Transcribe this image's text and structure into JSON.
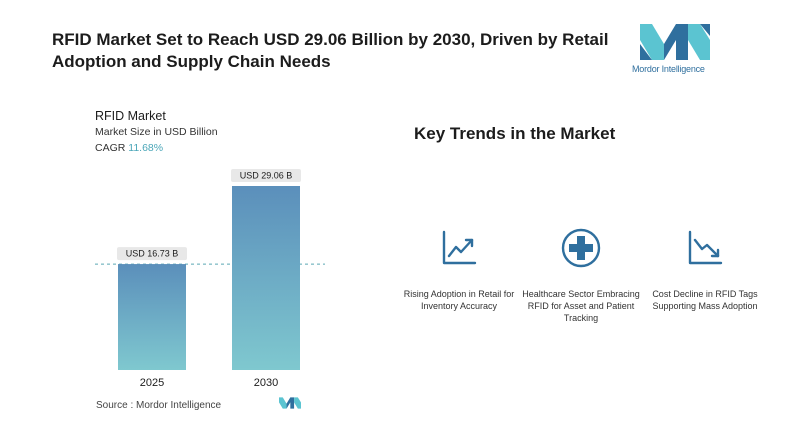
{
  "header": {
    "title": "RFID Market Set to Reach USD 29.06 Billion by 2030, Driven by Retail Adoption and Supply Chain Needs"
  },
  "brand": {
    "name": "Mordor Intelligence",
    "accent": "#2f6f9e",
    "accent_light": "#5bc4d1"
  },
  "chart_data": {
    "type": "bar",
    "title": "RFID Market",
    "subtitle": "Market Size in USD Billion",
    "cagr_label": "CAGR",
    "cagr_value": "11.68%",
    "categories": [
      "2025",
      "2030"
    ],
    "values": [
      16.73,
      29.06
    ],
    "value_labels": [
      "USD 16.73 B",
      "USD 29.06 B"
    ],
    "ylim": [
      0,
      30
    ],
    "grid": false,
    "reference_line": "dashed line at first bar value",
    "colors": {
      "bar_top": "#5b8fbb",
      "bar_bottom": "#7fc8cf",
      "label_bg": "#e8e8e8"
    }
  },
  "source": {
    "text": "Source :  Mordor Intelligence"
  },
  "trends": {
    "title": "Key Trends in the Market",
    "items": [
      {
        "icon": "growth-chart-icon",
        "label": "Rising Adoption in Retail for Inventory Accuracy"
      },
      {
        "icon": "medical-cross-icon",
        "label": "Healthcare Sector Embracing RFID for Asset and Patient Tracking"
      },
      {
        "icon": "decline-chart-icon",
        "label": "Cost Decline in RFID Tags Supporting Mass Adoption"
      }
    ],
    "icon_color": "#2f6f9e"
  }
}
